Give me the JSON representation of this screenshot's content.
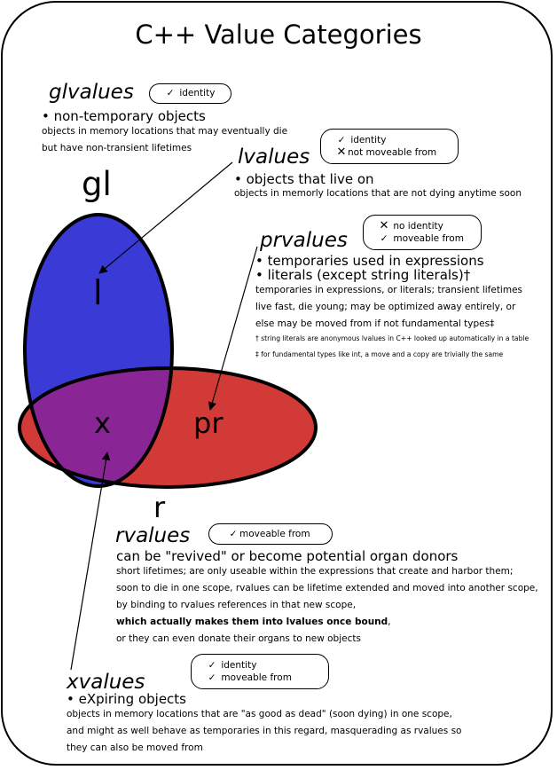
{
  "title": "C++ Value Categories",
  "regions": {
    "gl": "gl",
    "l": "l",
    "x": "x",
    "pr": "pr",
    "r": "r"
  },
  "colors": {
    "glvalue_blue": "#3a3ad6",
    "rvalue_red": "#d13a36",
    "xvalue_purple": "#8a2595"
  },
  "glvalues": {
    "name": "glvalues",
    "badge": [
      {
        "mark": "check-icon",
        "text": "identity"
      }
    ],
    "bullets": [
      "non-temporary objects"
    ],
    "desc": [
      "objects in memory locations that may eventually die",
      "but have non-transient lifetimes"
    ]
  },
  "lvalues": {
    "name": "lvalues",
    "badge": [
      {
        "mark": "check-icon",
        "text": "identity"
      },
      {
        "mark": "cross-icon",
        "text": "not moveable from"
      }
    ],
    "bullets": [
      "objects that live on"
    ],
    "desc": [
      "objects in memorly locations that are not dying anytime soon"
    ]
  },
  "prvalues": {
    "name": "prvalues",
    "badge": [
      {
        "mark": "cross-icon",
        "text": "no identity"
      },
      {
        "mark": "check-icon",
        "text": "moveable from"
      }
    ],
    "bullets": [
      "temporaries used in expressions",
      "literals (except string literals)†"
    ],
    "desc": [
      "temporaries in expressions, or literals; transient lifetimes",
      "live fast, die young; may be optimized away entirely, or",
      "else may be moved from if not fundamental types‡"
    ],
    "notes": [
      "† string literals are anonymous lvalues in C++ looked up automatically in a table",
      "‡ for fundamental types like int, a move and a copy are trivially the same"
    ]
  },
  "rvalues": {
    "name": "rvalues",
    "badge": [
      {
        "mark": "check-icon",
        "text": "moveable from"
      }
    ],
    "lead": "can be \"revived\" or become potential organ donors",
    "desc": [
      "short lifetimes; are only useable within the expressions that create and harbor them;",
      "soon to die in one scope, rvalues can be lifetime extended and moved into another scope,",
      "by binding to rvalues references in that new scope,"
    ],
    "desc_bold": "which actually makes them into lvalues once bound",
    "desc_bold_tail": ",",
    "desc_last": "or they can even donate their organs to new objects"
  },
  "xvalues": {
    "name": "xvalues",
    "badge": [
      {
        "mark": "check-icon",
        "text": "identity"
      },
      {
        "mark": "check-icon",
        "text": "moveable from"
      }
    ],
    "bullets": [
      "eXpiring objects"
    ],
    "desc": [
      "objects in memory locations that are \"as good as dead\" (soon dying) in one scope,",
      "and might as well behave as temporaries in this regard, masquerading as rvalues so",
      "they can also be moved from"
    ]
  }
}
